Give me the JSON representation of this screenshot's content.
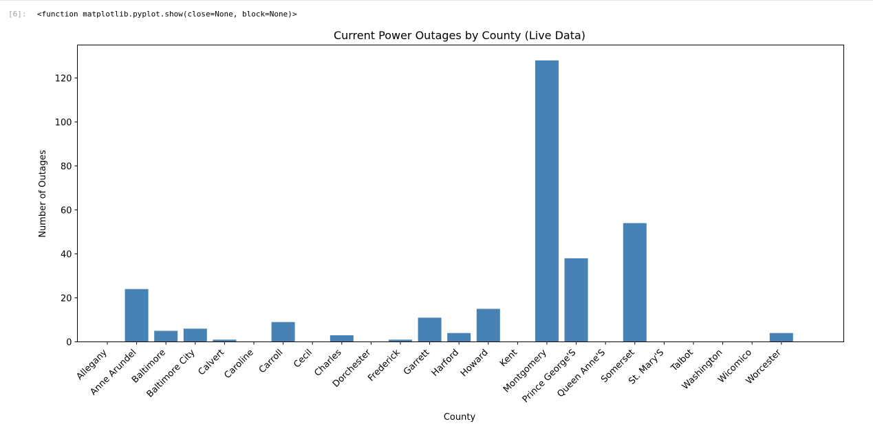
{
  "output": {
    "prompt": "[6]:",
    "repr": "<function matplotlib.pyplot.show(close=None, block=None)>"
  },
  "colors": {
    "bar": "#4682b4",
    "axes": "#000000",
    "prompt": "#a0a0a0"
  },
  "chart_data": {
    "type": "bar",
    "title": "Current Power Outages by County (Live Data)",
    "xlabel": "County",
    "ylabel": "Number of Outages",
    "ylim": [
      0,
      135
    ],
    "yticks": [
      0,
      20,
      40,
      60,
      80,
      100,
      120
    ],
    "grid": false,
    "categories": [
      "Allegany",
      "Anne Arundel",
      "Baltimore",
      "Baltimore City",
      "Calvert",
      "Caroline",
      "Carroll",
      "Cecil",
      "Charles",
      "Dorchester",
      "Frederick",
      "Garrett",
      "Harford",
      "Howard",
      "Kent",
      "Montgomery",
      "Prince George'S",
      "Queen Anne'S",
      "Somerset",
      "St. Mary'S",
      "Talbot",
      "Washington",
      "Wicomico",
      "Worcester"
    ],
    "values": [
      0,
      24,
      5,
      6,
      1,
      0,
      9,
      0,
      3,
      0,
      1,
      11,
      4,
      15,
      0,
      128,
      38,
      0,
      54,
      0,
      0,
      0,
      0,
      4
    ]
  }
}
